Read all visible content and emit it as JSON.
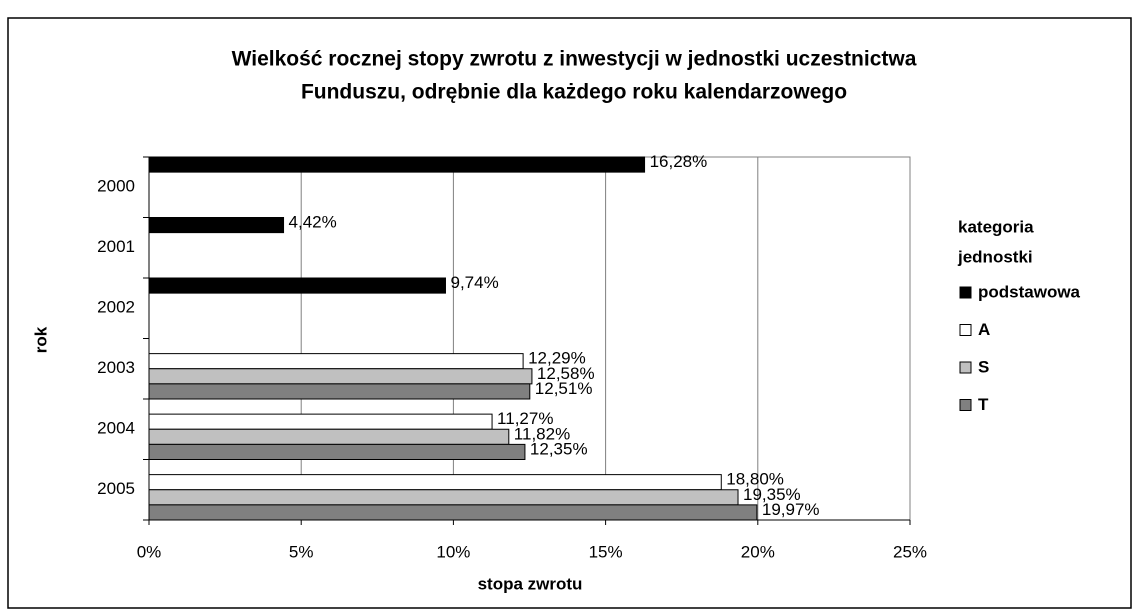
{
  "chart_data": {
    "type": "bar",
    "orientation": "horizontal",
    "title": [
      "Wielkość rocznej stopy zwrotu z inwestycji w jednostki uczestnictwa",
      "Funduszu, odrębnie dla każdego roku kalendarzowego"
    ],
    "x_label": "stopa zwrotu",
    "y_label": "rok",
    "legend_title": [
      "kategoria",
      "jednostki"
    ],
    "legend_position": "right",
    "categories": [
      "2000",
      "2001",
      "2002",
      "2003",
      "2004",
      "2005"
    ],
    "series": [
      {
        "name": "podstawowa",
        "color": "#000000",
        "values": [
          16.28,
          4.42,
          9.74,
          null,
          null,
          null
        ],
        "value_labels": [
          "16,28%",
          "4,42%",
          "9,74%",
          null,
          null,
          null
        ]
      },
      {
        "name": "A",
        "color": "#ffffff",
        "values": [
          null,
          null,
          null,
          12.29,
          11.27,
          18.8
        ],
        "value_labels": [
          null,
          null,
          null,
          "12,29%",
          "11,27%",
          "18,80%"
        ]
      },
      {
        "name": "S",
        "color": "#c0c0c0",
        "values": [
          null,
          null,
          null,
          12.58,
          11.82,
          19.35
        ],
        "value_labels": [
          null,
          null,
          null,
          "12,58%",
          "11,82%",
          "19,35%"
        ]
      },
      {
        "name": "T",
        "color": "#808080",
        "values": [
          null,
          null,
          null,
          12.51,
          12.35,
          19.97
        ],
        "value_labels": [
          null,
          null,
          null,
          "12,51%",
          "12,35%",
          "19,97%"
        ]
      }
    ],
    "xlim": [
      0,
      25
    ],
    "xticks": [
      {
        "value": 0,
        "label": "0%"
      },
      {
        "value": 5,
        "label": "5%"
      },
      {
        "value": 10,
        "label": "10%"
      },
      {
        "value": 15,
        "label": "15%"
      },
      {
        "value": 20,
        "label": "20%"
      },
      {
        "value": 25,
        "label": "25%"
      }
    ],
    "grid": true
  }
}
